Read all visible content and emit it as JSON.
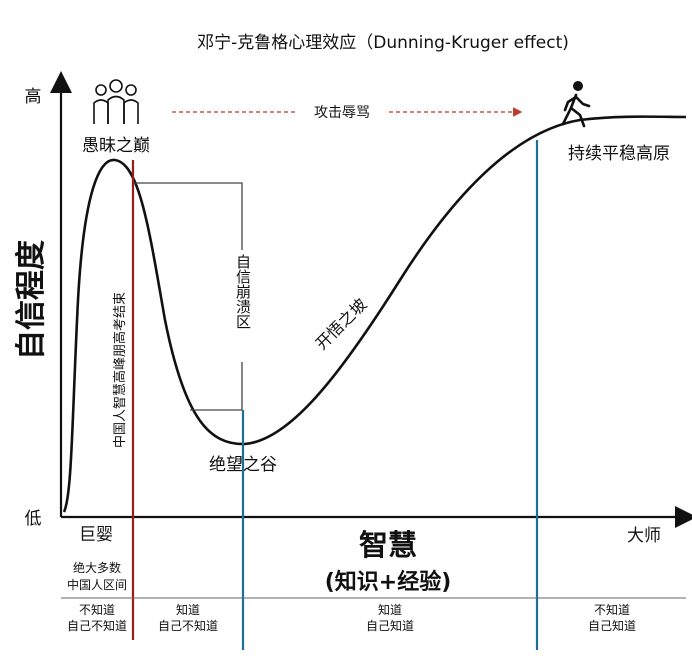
{
  "title": "邓宁-克鲁格心理效应（Dunning-Kruger effect)",
  "y_axis": {
    "label": "自信程度",
    "high": "高",
    "low": "低"
  },
  "x_axis": {
    "label": "智慧",
    "sublabel": "(知识+经验)",
    "start": "巨婴",
    "end": "大师"
  },
  "curve_labels": {
    "peak": "愚昧之巅",
    "valley": "绝望之谷",
    "slope": "开悟之坡",
    "plateau": "持续平稳高原",
    "collapse": "自信崩溃区",
    "attack": "攻击辱骂",
    "vertical_note": "中国人智慧高峰朋高考结束"
  },
  "icons": {
    "peak": "group-people-icon",
    "plateau": "walking-person-icon"
  },
  "bottom_note": [
    "绝大多数",
    "中国人区间"
  ],
  "quadrants": [
    {
      "line1": "不知道",
      "line2": "自己不知道"
    },
    {
      "line1": "知道",
      "line2": "自己不知道"
    },
    {
      "line1": "知道",
      "line2": "自己知道"
    },
    {
      "line1": "不知道",
      "line2": "自己知道"
    }
  ],
  "colors": {
    "curve": "#111111",
    "divider_red": "#9b1b1b",
    "divider_blue": "#1f6f95",
    "arrow_red": "#c0392b"
  }
}
